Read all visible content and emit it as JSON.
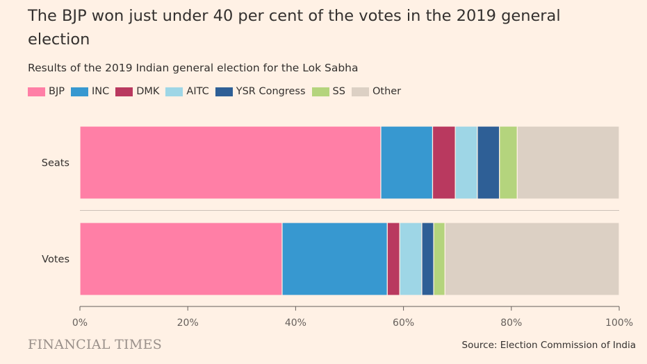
{
  "title": "The BJP won just under 40 per cent of the votes in the 2019 general election",
  "subtitle": "Results of the 2019 Indian general election for the Lok Sabha",
  "brand": "FINANCIAL TIMES",
  "source": "Source: Election Commission of India",
  "colors": {
    "background": "#fff1e5",
    "BJP": "#ff7fa6",
    "INC": "#3798d0",
    "DMK": "#b9395f",
    "AITC": "#9ed6e6",
    "YSR Congress": "#2e5f96",
    "SS": "#b4d47d",
    "Other": "#dcd0c4"
  },
  "chart_data": {
    "type": "bar",
    "orientation": "horizontal",
    "stacked": true,
    "categories": [
      "Seats",
      "Votes"
    ],
    "series": [
      {
        "name": "BJP",
        "values": [
          55.8,
          37.5
        ]
      },
      {
        "name": "INC",
        "values": [
          9.6,
          19.5
        ]
      },
      {
        "name": "DMK",
        "values": [
          4.2,
          2.3
        ]
      },
      {
        "name": "AITC",
        "values": [
          4.1,
          4.1
        ]
      },
      {
        "name": "YSR Congress",
        "values": [
          4.1,
          2.2
        ]
      },
      {
        "name": "SS",
        "values": [
          3.3,
          2.1
        ]
      },
      {
        "name": "Other",
        "values": [
          18.9,
          32.3
        ]
      }
    ],
    "xlim": [
      0,
      100
    ],
    "x_ticks": [
      "0%",
      "20%",
      "40%",
      "60%",
      "80%",
      "100%"
    ],
    "legend_position": "top-left",
    "grid": false
  }
}
